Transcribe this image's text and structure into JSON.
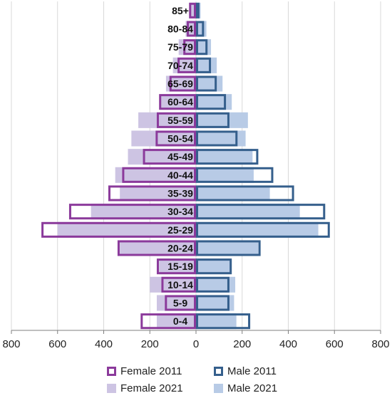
{
  "chart_data": {
    "type": "bar",
    "orientation": "horizontal",
    "title": "",
    "xlabel": "",
    "ylabel": "",
    "categories": [
      "0-4",
      "5-9",
      "10-14",
      "15-19",
      "20-24",
      "25-29",
      "30-34",
      "35-39",
      "40-44",
      "45-49",
      "50-54",
      "55-59",
      "60-64",
      "65-69",
      "70-74",
      "75-79",
      "80-84",
      "85+"
    ],
    "xlim": [
      -800,
      800
    ],
    "x_ticks": [
      -800,
      -600,
      -400,
      -200,
      0,
      200,
      400,
      600,
      800
    ],
    "x_tick_labels": [
      "800",
      "600",
      "400",
      "200",
      "0",
      "200",
      "400",
      "600",
      "800"
    ],
    "grid": "vertical",
    "legend_position": "bottom",
    "series": [
      {
        "name": "Female 2011",
        "side": "left",
        "style": "outline",
        "color": "#8b3a9b",
        "values": [
          240,
          135,
          150,
          170,
          340,
          670,
          550,
          380,
          320,
          230,
          175,
          170,
          160,
          115,
          80,
          55,
          40,
          30
        ]
      },
      {
        "name": "Male 2011",
        "side": "right",
        "style": "outline",
        "color": "#355f8c",
        "values": [
          235,
          145,
          145,
          155,
          280,
          580,
          560,
          425,
          335,
          270,
          180,
          145,
          130,
          90,
          65,
          50,
          35,
          15
        ]
      },
      {
        "name": "Female 2021",
        "side": "left",
        "style": "fill",
        "color": "#cdc4e3",
        "values": [
          170,
          170,
          200,
          160,
          330,
          600,
          455,
          330,
          350,
          295,
          280,
          250,
          155,
          130,
          100,
          75,
          45,
          30
        ]
      },
      {
        "name": "Male 2021",
        "side": "right",
        "style": "fill",
        "color": "#b8cbe6",
        "values": [
          175,
          165,
          170,
          150,
          270,
          530,
          450,
          320,
          250,
          245,
          215,
          225,
          155,
          115,
          90,
          65,
          45,
          20
        ]
      }
    ]
  }
}
